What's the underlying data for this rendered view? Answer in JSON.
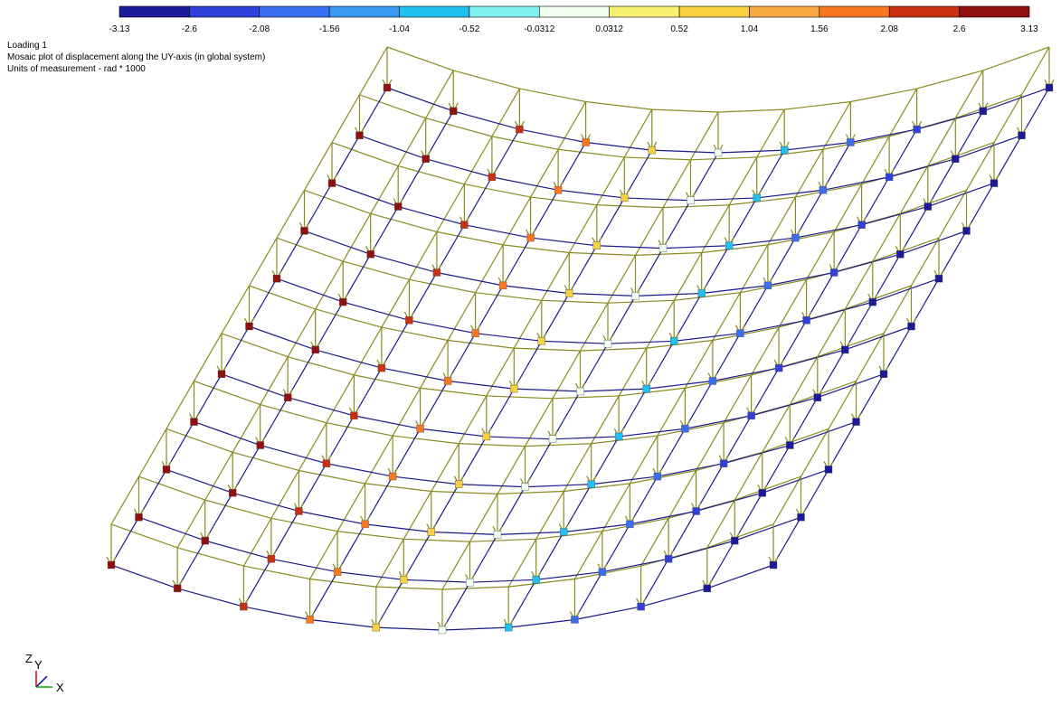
{
  "legend": {
    "labels": [
      "-3.13",
      "-2.6",
      "-2.08",
      "-1.56",
      "-1.04",
      "-0.52",
      "-0.0312",
      "0.0312",
      "0.52",
      "1.04",
      "1.56",
      "2.08",
      "2.6",
      "3.13"
    ],
    "colors": [
      "#1a1a9a",
      "#3040d8",
      "#3a6ef0",
      "#3a98f0",
      "#20c0f0",
      "#80f0f0",
      "#f0fff0",
      "#f8f070",
      "#f8d040",
      "#f8a840",
      "#f87820",
      "#c83010",
      "#901010"
    ]
  },
  "header": {
    "loading": "Loading  1",
    "title": "Mosaic plot of displacement along the UY-axis (in global system)",
    "units": "Units of measurement - rad * 1000"
  },
  "axes_icon": {
    "z": "Z",
    "y": "Y",
    "x": "X"
  }
}
